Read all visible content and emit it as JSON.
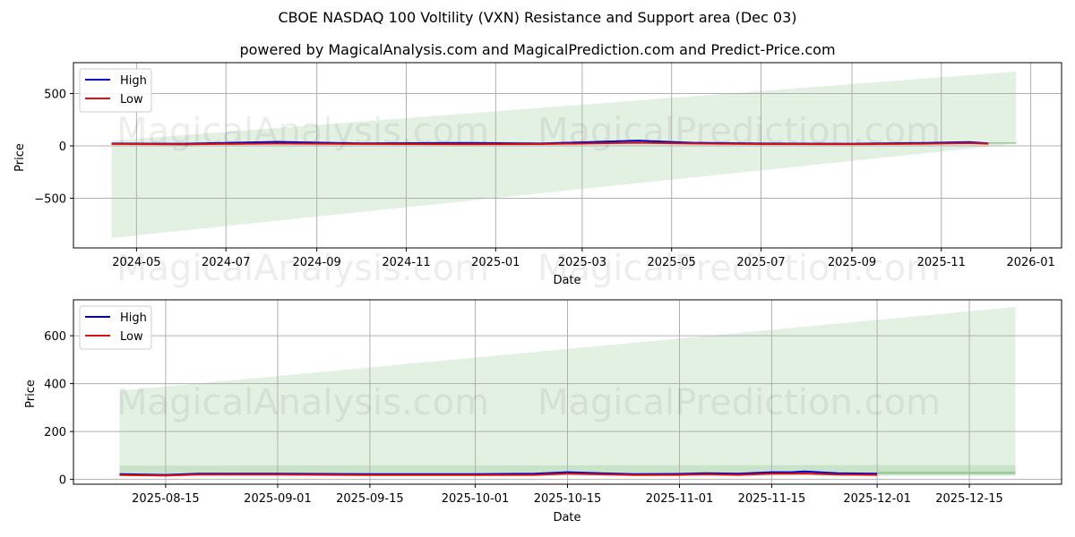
{
  "header": {
    "title": "CBOE NASDAQ 100 Voltility (VXN) Resistance and Support area (Dec 03)",
    "subtitle": "powered by MagicalAnalysis.com and MagicalPrediction.com and Predict-Price.com"
  },
  "watermarks": [
    "MagicalAnalysis.com",
    "MagicalPrediction.com"
  ],
  "colors": {
    "high": "#0000cc",
    "low": "#dd1111",
    "band": "#c8e3c8",
    "band_inner": "#8fc48f",
    "grid": "#b0b0b0"
  },
  "chart_data": [
    {
      "type": "line",
      "title": "",
      "xlabel": "Date",
      "ylabel": "Price",
      "ylim": [
        -975,
        795
      ],
      "xlim": [
        "2024-03-19",
        "2026-01-22"
      ],
      "grid": true,
      "legend_position": "upper left",
      "legend": [
        "High",
        "Low"
      ],
      "yticks": [
        -500,
        0,
        500
      ],
      "ytick_labels": [
        "−500",
        "0",
        "500"
      ],
      "xtick_labels": [
        "2024-05",
        "2024-07",
        "2024-09",
        "2024-11",
        "2025-01",
        "2025-03",
        "2025-05",
        "2025-07",
        "2025-09",
        "2025-11",
        "2026-01"
      ],
      "series": [
        {
          "name": "High",
          "x": [
            "2024-04-14",
            "2024-06-01",
            "2024-08-05",
            "2024-10-01",
            "2024-12-15",
            "2025-02-01",
            "2025-04-08",
            "2025-05-15",
            "2025-07-01",
            "2025-09-01",
            "2025-10-20",
            "2025-11-20",
            "2025-12-03"
          ],
          "values": [
            22,
            20,
            38,
            24,
            28,
            22,
            50,
            30,
            22,
            20,
            28,
            36,
            24
          ]
        },
        {
          "name": "Low",
          "x": [
            "2024-04-14",
            "2024-06-01",
            "2024-08-05",
            "2024-10-01",
            "2024-12-15",
            "2025-02-01",
            "2025-04-08",
            "2025-05-15",
            "2025-07-01",
            "2025-09-01",
            "2025-10-20",
            "2025-11-20",
            "2025-12-03"
          ],
          "values": [
            18,
            15,
            22,
            18,
            16,
            17,
            30,
            22,
            17,
            16,
            20,
            26,
            20
          ]
        }
      ],
      "support_resistance_band": {
        "x": [
          "2024-04-14",
          "2025-12-22"
        ],
        "upper": [
          50,
          710
        ],
        "lower": [
          -880,
          20
        ]
      },
      "forecast_band": {
        "x": [
          "2025-12-03",
          "2025-12-22"
        ],
        "upper": [
          35,
          35
        ],
        "lower": [
          20,
          20
        ]
      }
    },
    {
      "type": "line",
      "title": "",
      "xlabel": "Date",
      "ylabel": "Price",
      "ylim": [
        -20,
        750
      ],
      "xlim": [
        "2025-08-01",
        "2025-12-29"
      ],
      "grid": true,
      "legend_position": "upper left",
      "legend": [
        "High",
        "Low"
      ],
      "yticks": [
        0,
        200,
        400,
        600
      ],
      "ytick_labels": [
        "0",
        "200",
        "400",
        "600"
      ],
      "xtick_labels": [
        "2025-08-15",
        "2025-09-01",
        "2025-09-15",
        "2025-10-01",
        "2025-10-15",
        "2025-11-01",
        "2025-11-15",
        "2025-12-01",
        "2025-12-15"
      ],
      "series": [
        {
          "name": "High",
          "x": [
            "2025-08-08",
            "2025-08-15",
            "2025-08-20",
            "2025-09-01",
            "2025-09-15",
            "2025-10-01",
            "2025-10-10",
            "2025-10-15",
            "2025-10-20",
            "2025-10-25",
            "2025-11-01",
            "2025-11-05",
            "2025-11-10",
            "2025-11-15",
            "2025-11-18",
            "2025-11-20",
            "2025-11-25",
            "2025-12-01"
          ],
          "values": [
            22,
            19,
            24,
            24,
            22,
            22,
            24,
            30,
            26,
            22,
            23,
            26,
            24,
            30,
            30,
            33,
            26,
            24
          ]
        },
        {
          "name": "Low",
          "x": [
            "2025-08-08",
            "2025-08-15",
            "2025-08-20",
            "2025-09-01",
            "2025-09-15",
            "2025-10-01",
            "2025-10-10",
            "2025-10-15",
            "2025-10-20",
            "2025-10-25",
            "2025-11-01",
            "2025-11-05",
            "2025-11-10",
            "2025-11-15",
            "2025-11-18",
            "2025-11-20",
            "2025-11-25",
            "2025-12-01"
          ],
          "values": [
            18,
            16,
            20,
            20,
            18,
            18,
            19,
            24,
            21,
            18,
            19,
            21,
            19,
            24,
            24,
            25,
            20,
            19
          ]
        }
      ],
      "support_resistance_band": {
        "x": [
          "2025-08-08",
          "2025-12-22"
        ],
        "upper": [
          370,
          720
        ],
        "lower": [
          20,
          20
        ]
      },
      "inner_band": {
        "x": [
          "2025-08-08",
          "2025-12-22"
        ],
        "upper": [
          58,
          60
        ],
        "lower": [
          15,
          15
        ]
      },
      "forecast_band": {
        "x": [
          "2025-12-01",
          "2025-12-22"
        ],
        "upper": [
          32,
          32
        ],
        "lower": [
          22,
          22
        ]
      }
    }
  ]
}
